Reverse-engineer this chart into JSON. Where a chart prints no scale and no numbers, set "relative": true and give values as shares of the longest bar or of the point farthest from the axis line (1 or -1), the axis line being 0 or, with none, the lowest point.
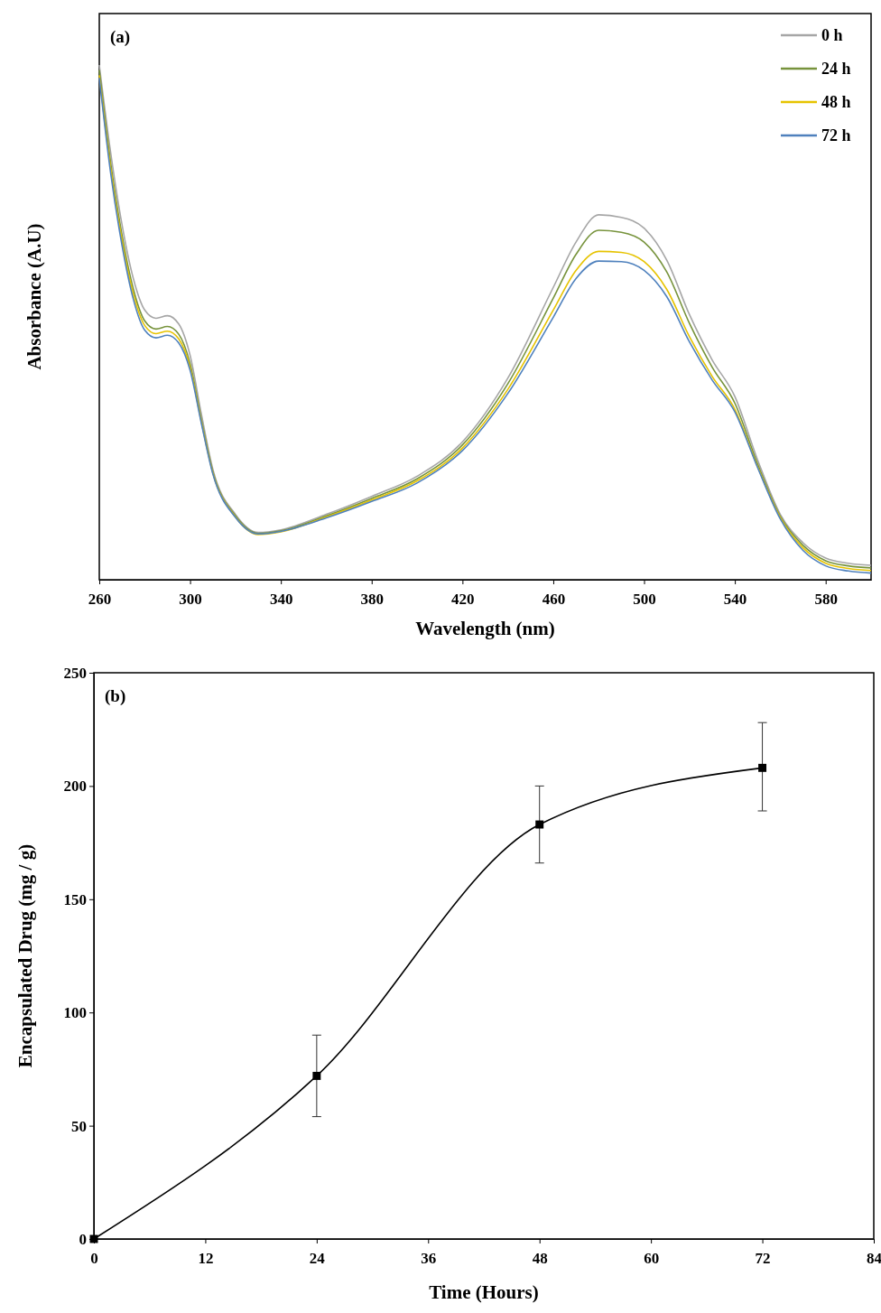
{
  "chart_data": [
    {
      "type": "line",
      "relative": true,
      "annotations": [
        "(a)"
      ],
      "xlabel": "Wavelength (nm)",
      "ylabel": "Absorbance (A.U)",
      "xlim": [
        260,
        600
      ],
      "xticks": [
        260,
        300,
        340,
        380,
        420,
        460,
        500,
        540,
        580
      ],
      "tick_labels": "x",
      "legend": "top right",
      "x": [
        260,
        265,
        270,
        275,
        280,
        285,
        290,
        295,
        300,
        305,
        310,
        320,
        330,
        340,
        360,
        380,
        400,
        420,
        440,
        460,
        470,
        480,
        490,
        500,
        510,
        520,
        530,
        540,
        550,
        560,
        570,
        580,
        590,
        600
      ],
      "series": [
        {
          "name": "0 h",
          "color": "#a6a6a6",
          "values": [
            1.0,
            0.83,
            0.69,
            0.585,
            0.524,
            0.508,
            0.513,
            0.497,
            0.436,
            0.321,
            0.215,
            0.127,
            0.092,
            0.097,
            0.127,
            0.162,
            0.201,
            0.268,
            0.392,
            0.568,
            0.656,
            0.709,
            0.704,
            0.683,
            0.621,
            0.515,
            0.427,
            0.356,
            0.233,
            0.127,
            0.072,
            0.042,
            0.032,
            0.028
          ]
        },
        {
          "name": "24 h",
          "color": "#77933c",
          "values": [
            0.99,
            0.81,
            0.67,
            0.565,
            0.503,
            0.487,
            0.492,
            0.477,
            0.42,
            0.31,
            0.21,
            0.124,
            0.09,
            0.095,
            0.124,
            0.158,
            0.196,
            0.262,
            0.381,
            0.547,
            0.632,
            0.679,
            0.675,
            0.656,
            0.598,
            0.498,
            0.413,
            0.343,
            0.225,
            0.123,
            0.067,
            0.037,
            0.027,
            0.023
          ]
        },
        {
          "name": "48 h",
          "color": "#e6c300",
          "values": [
            0.98,
            0.8,
            0.66,
            0.555,
            0.494,
            0.478,
            0.483,
            0.468,
            0.413,
            0.306,
            0.208,
            0.122,
            0.088,
            0.093,
            0.122,
            0.155,
            0.192,
            0.256,
            0.37,
            0.524,
            0.601,
            0.638,
            0.636,
            0.618,
            0.564,
            0.472,
            0.395,
            0.331,
            0.22,
            0.121,
            0.062,
            0.032,
            0.022,
            0.018
          ]
        },
        {
          "name": "72 h",
          "color": "#4f81bd",
          "values": [
            0.975,
            0.79,
            0.65,
            0.545,
            0.485,
            0.47,
            0.475,
            0.46,
            0.407,
            0.303,
            0.206,
            0.121,
            0.089,
            0.094,
            0.12,
            0.152,
            0.188,
            0.251,
            0.362,
            0.51,
            0.585,
            0.619,
            0.618,
            0.601,
            0.55,
            0.462,
            0.388,
            0.326,
            0.218,
            0.118,
            0.057,
            0.027,
            0.017,
            0.013
          ]
        }
      ]
    },
    {
      "type": "line",
      "annotations": [
        "(b)"
      ],
      "xlabel": "Time (Hours)",
      "ylabel": "Encapsulated Drug (mg / g)",
      "xlim": [
        0,
        84
      ],
      "xticks": [
        0,
        12,
        24,
        36,
        48,
        60,
        72,
        84
      ],
      "ylim": [
        0,
        250
      ],
      "yticks": [
        0,
        50,
        100,
        150,
        200,
        250
      ],
      "marker": "square",
      "x": [
        0,
        24,
        48,
        72
      ],
      "series": [
        {
          "color": "#000000",
          "values": [
            0,
            72,
            183,
            208
          ],
          "errors": [
            null,
            18,
            17,
            [
              189,
              228
            ]
          ]
        }
      ]
    }
  ]
}
